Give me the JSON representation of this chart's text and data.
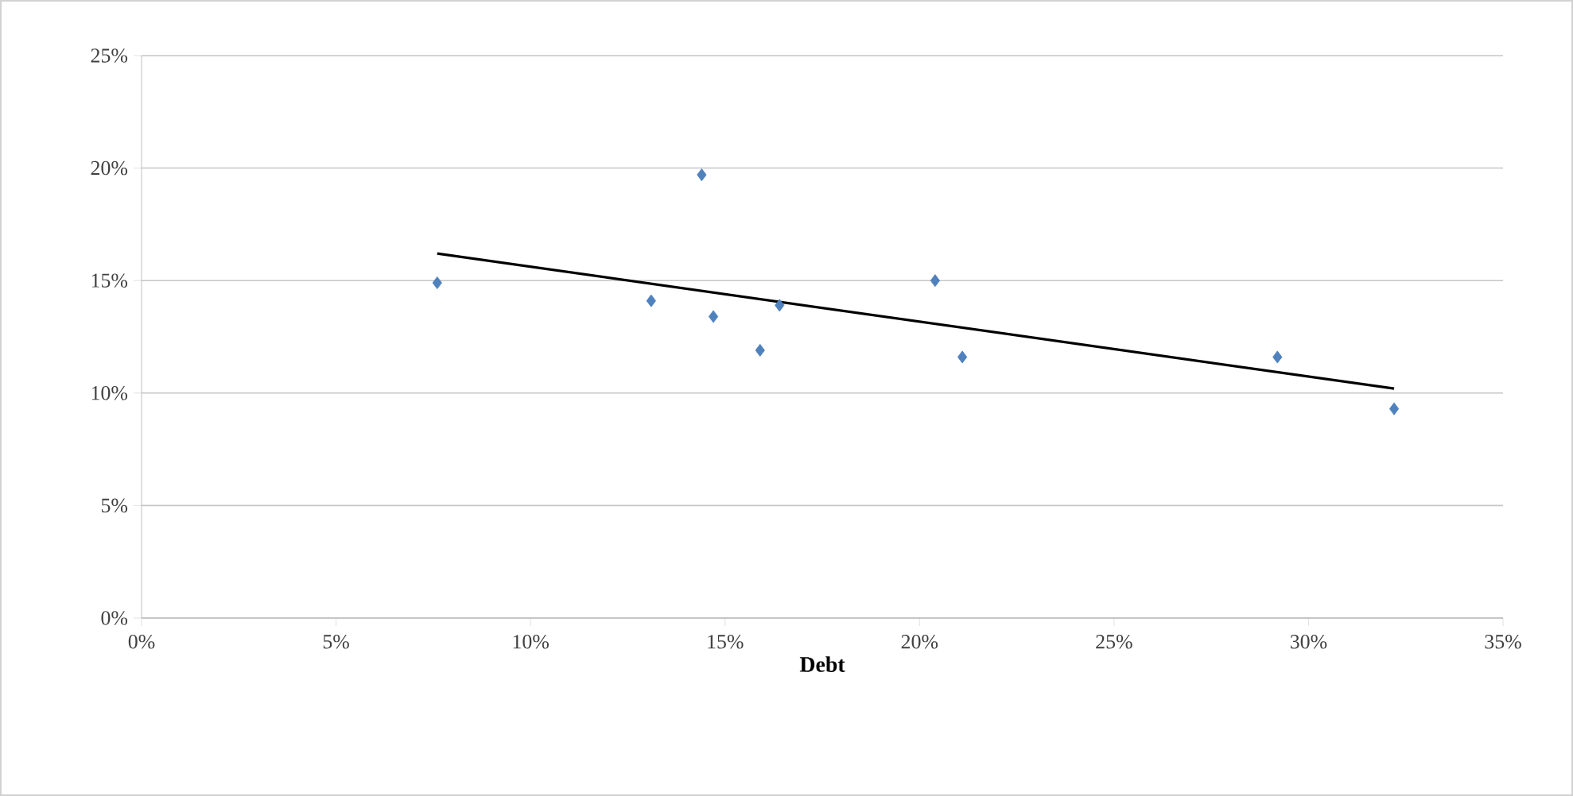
{
  "chart_data": {
    "type": "scatter",
    "xlabel": "Debt",
    "xlim": [
      0,
      35
    ],
    "ylim": [
      0,
      25
    ],
    "xticks": [
      {
        "value": 0,
        "label": "0%"
      },
      {
        "value": 5,
        "label": "5%"
      },
      {
        "value": 10,
        "label": "10%"
      },
      {
        "value": 15,
        "label": "15%"
      },
      {
        "value": 20,
        "label": "20%"
      },
      {
        "value": 25,
        "label": "25%"
      },
      {
        "value": 30,
        "label": "30%"
      },
      {
        "value": 35,
        "label": "35%"
      }
    ],
    "yticks": [
      {
        "value": 0,
        "label": "0%"
      },
      {
        "value": 5,
        "label": "5%"
      },
      {
        "value": 10,
        "label": "10%"
      },
      {
        "value": 15,
        "label": "15%"
      },
      {
        "value": 20,
        "label": "20%"
      },
      {
        "value": 25,
        "label": "25%"
      }
    ],
    "grid": "y",
    "series": [
      {
        "color": "#4f81bd",
        "marker": "diamond",
        "x": [
          7.6,
          13.1,
          14.4,
          14.7,
          15.9,
          16.4,
          20.4,
          21.1,
          29.2,
          32.2
        ],
        "values": [
          14.9,
          14.1,
          19.7,
          13.4,
          11.9,
          13.9,
          15.0,
          11.6,
          11.6,
          9.3
        ]
      },
      {
        "type": "line",
        "color": "#000000",
        "marker": "none",
        "line_style": "solid",
        "x": [
          7.6,
          32.2
        ],
        "values": [
          16.2,
          10.2
        ]
      }
    ]
  }
}
